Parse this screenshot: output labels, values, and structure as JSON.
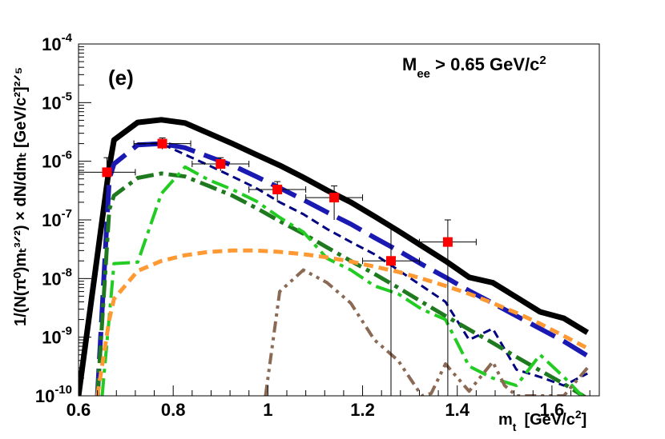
{
  "chart_data": {
    "type": "line",
    "panel_label": "(e)",
    "cut_label": {
      "base": "M",
      "sub": "ee",
      "text": " > 0.65 GeV/c",
      "sup": "2"
    },
    "xlabel": {
      "base": "m",
      "sub": "t",
      "units": "[GeV/c",
      "units_sup": "2",
      "units_close": "]"
    },
    "ylabel": "1/(N(π⁰)mₜ³ᐟ²) × dN/dmₜ  [GeV/c²]²ᐟ⁵",
    "xlim": [
      0.6,
      1.7
    ],
    "ylim": [
      1e-10,
      0.0001
    ],
    "x_ticks": [
      {
        "value": 0.6,
        "label": "0.6"
      },
      {
        "value": 0.8,
        "label": "0.8"
      },
      {
        "value": 1.0,
        "label": "1"
      },
      {
        "value": 1.2,
        "label": "1.2"
      },
      {
        "value": 1.4,
        "label": "1.4"
      },
      {
        "value": 1.6,
        "label": "1.6"
      }
    ],
    "y_ticks": [
      {
        "value": 1e-10,
        "base": "10",
        "exp": "-10"
      },
      {
        "value": 1e-09,
        "base": "10",
        "exp": "-9"
      },
      {
        "value": 1e-08,
        "base": "10",
        "exp": "-8"
      },
      {
        "value": 1e-07,
        "base": "10",
        "exp": "-7"
      },
      {
        "value": 1e-06,
        "base": "10",
        "exp": "-6"
      },
      {
        "value": 1e-05,
        "base": "10",
        "exp": "-5"
      },
      {
        "value": 0.0001,
        "base": "10",
        "exp": "-4"
      }
    ],
    "series": [
      {
        "name": "total",
        "color": "#000000",
        "style": "solid",
        "width": 7,
        "x": [
          0.6,
          0.665,
          0.675,
          0.725,
          0.775,
          0.825,
          0.875,
          0.925,
          0.975,
          1.025,
          1.075,
          1.125,
          1.175,
          1.225,
          1.275,
          1.325,
          1.375,
          1.425,
          1.475,
          1.525,
          1.575,
          1.625,
          1.675
        ],
        "y": [
          1e-10,
          8e-07,
          2.3e-06,
          4.6e-06,
          5.1e-06,
          4.5e-06,
          3e-06,
          2e-06,
          1.3e-06,
          8.5e-07,
          5.3e-07,
          3.2e-07,
          2e-07,
          1.15e-07,
          6.5e-08,
          3.6e-08,
          2e-08,
          1.05e-08,
          8.5e-09,
          4.8e-09,
          2.7e-09,
          2.1e-09,
          1.2e-09
        ]
      },
      {
        "name": "blue-long-dash",
        "color": "#1a1ab3",
        "style": "long-dash",
        "width": 6,
        "x": [
          0.64,
          0.665,
          0.675,
          0.725,
          0.775,
          0.825,
          0.875,
          0.925,
          0.975,
          1.025,
          1.075,
          1.125,
          1.175,
          1.225,
          1.275,
          1.325,
          1.375,
          1.425,
          1.475,
          1.525,
          1.575,
          1.625,
          1.675
        ],
        "y": [
          1e-10,
          5e-07,
          9e-07,
          1.9e-06,
          2e-06,
          1.7e-06,
          1.2e-06,
          8.5e-07,
          5.5e-07,
          3.5e-07,
          2.2e-07,
          1.35e-07,
          8.5e-08,
          5e-08,
          3e-08,
          1.75e-08,
          1.05e-08,
          6.2e-09,
          3.8e-09,
          2.3e-09,
          1.4e-09,
          8.5e-10,
          4.8e-10
        ]
      },
      {
        "name": "navy-short-dash",
        "color": "#000080",
        "style": "short-dash",
        "width": 3,
        "x": [
          0.725,
          0.775,
          0.825,
          0.875,
          0.925,
          0.975,
          1.025,
          1.075,
          1.125,
          1.175,
          1.225,
          1.275,
          1.325,
          1.375,
          1.425,
          1.475,
          1.525,
          1.575,
          1.625,
          1.675
        ],
        "y": [
          2e-06,
          2e-06,
          1.3e-06,
          8.5e-07,
          5.5e-07,
          3.5e-07,
          2e-07,
          1.25e-07,
          7e-08,
          4.2e-08,
          2.6e-08,
          1.4e-08,
          7.5e-09,
          4e-09,
          9e-10,
          1.4e-09,
          2.8e-10,
          2.1e-10,
          1.5e-10,
          2.4e-10
        ]
      },
      {
        "name": "green-dash-dot",
        "color": "#1f7a1f",
        "style": "dash-dot",
        "width": 5,
        "x": [
          0.64,
          0.665,
          0.675,
          0.725,
          0.775,
          0.825,
          0.875,
          0.925,
          0.975,
          1.025,
          1.075,
          1.125,
          1.175,
          1.225,
          1.275,
          1.325,
          1.375,
          1.425,
          1.475,
          1.525,
          1.575,
          1.625,
          1.675
        ],
        "y": [
          1e-10,
          1.5e-07,
          2.6e-07,
          5.2e-07,
          6.2e-07,
          5.5e-07,
          3.8e-07,
          2.6e-07,
          1.6e-07,
          9.5e-08,
          5.8e-08,
          3.4e-08,
          2e-08,
          1.2e-08,
          7e-09,
          4e-09,
          2.3e-09,
          1.35e-09,
          8e-10,
          4.6e-10,
          2.7e-10,
          1.6e-10,
          9e-11
        ]
      },
      {
        "name": "lightgreen-dash-dot",
        "color": "#22cc22",
        "style": "dash-dot",
        "width": 4,
        "x": [
          0.65,
          0.675,
          0.725,
          0.775,
          0.825,
          0.875,
          0.925,
          0.975,
          1.025,
          1.075,
          1.125,
          1.175,
          1.225,
          1.275,
          1.325,
          1.375,
          1.425,
          1.475,
          1.525,
          1.575,
          1.625,
          1.675
        ],
        "y": [
          1e-10,
          1.8e-08,
          1.9e-08,
          2.8e-07,
          8e-07,
          4.8e-07,
          3.3e-07,
          2.1e-07,
          1.1e-07,
          6.2e-08,
          2.2e-08,
          1.4e-08,
          7.5e-09,
          5.5e-09,
          3e-09,
          2e-09,
          3.2e-10,
          2e-10,
          1.5e-10,
          5e-10,
          2.1e-10,
          8e-11
        ]
      },
      {
        "name": "orange-dash",
        "color": "#ff9933",
        "style": "dash",
        "width": 5,
        "x": [
          0.64,
          0.665,
          0.675,
          0.725,
          0.775,
          0.825,
          0.875,
          0.925,
          0.975,
          1.025,
          1.075,
          1.125,
          1.175,
          1.225,
          1.275,
          1.325,
          1.375,
          1.425,
          1.475,
          1.525,
          1.575,
          1.625,
          1.675
        ],
        "y": [
          1e-10,
          2e-09,
          4.5e-09,
          1.35e-08,
          2e-08,
          2.5e-08,
          2.85e-08,
          3e-08,
          3e-08,
          2.85e-08,
          2.6e-08,
          2.3e-08,
          1.95e-08,
          1.6e-08,
          1.3e-08,
          1e-08,
          7.5e-09,
          5.5e-09,
          3.8e-09,
          2.6e-09,
          1.7e-09,
          1.05e-09,
          6.5e-10
        ]
      },
      {
        "name": "brown-dash-dot-dot",
        "color": "#8b6a55",
        "style": "dash-dot-dot",
        "width": 4,
        "x": [
          0.995,
          1.025,
          1.075,
          1.125,
          1.175,
          1.225,
          1.275,
          1.325,
          1.345,
          1.375,
          1.425,
          1.475,
          1.5,
          1.525,
          1.575,
          1.625,
          1.675
        ],
        "y": [
          1e-10,
          6e-09,
          1.4e-08,
          8.5e-09,
          3.8e-09,
          9e-10,
          4e-10,
          1e-10,
          1.1e-10,
          3.5e-10,
          1.2e-10,
          3.8e-10,
          1.5e-10,
          1e-10,
          1e-10,
          1e-10,
          3e-10
        ]
      }
    ],
    "data_points": {
      "name": "data",
      "color": "#ff0000",
      "points": [
        {
          "x": 0.66,
          "y": 6.5e-07,
          "xerr": 0.06,
          "ylo": 4.5e-07,
          "yhi": 1.15e-06
        },
        {
          "x": 0.777,
          "y": 2e-06,
          "xerr": 0.06,
          "ylo": 1.6e-06,
          "yhi": 2.5e-06
        },
        {
          "x": 0.9,
          "y": 9e-07,
          "xerr": 0.06,
          "ylo": 6.8e-07,
          "yhi": 1.15e-06
        },
        {
          "x": 1.02,
          "y": 3.3e-07,
          "xerr": 0.06,
          "ylo": 2e-07,
          "yhi": 4.5e-07
        },
        {
          "x": 1.14,
          "y": 2.4e-07,
          "xerr": 0.06,
          "ylo": 1e-07,
          "yhi": 3.8e-07
        },
        {
          "x": 1.26,
          "y": 2e-08,
          "xerr": 0.06,
          "ylo": 1e-10,
          "yhi": 7.5e-08
        },
        {
          "x": 1.38,
          "y": 4.2e-08,
          "xerr": 0.06,
          "ylo": 1e-10,
          "yhi": 1e-07
        }
      ]
    }
  }
}
